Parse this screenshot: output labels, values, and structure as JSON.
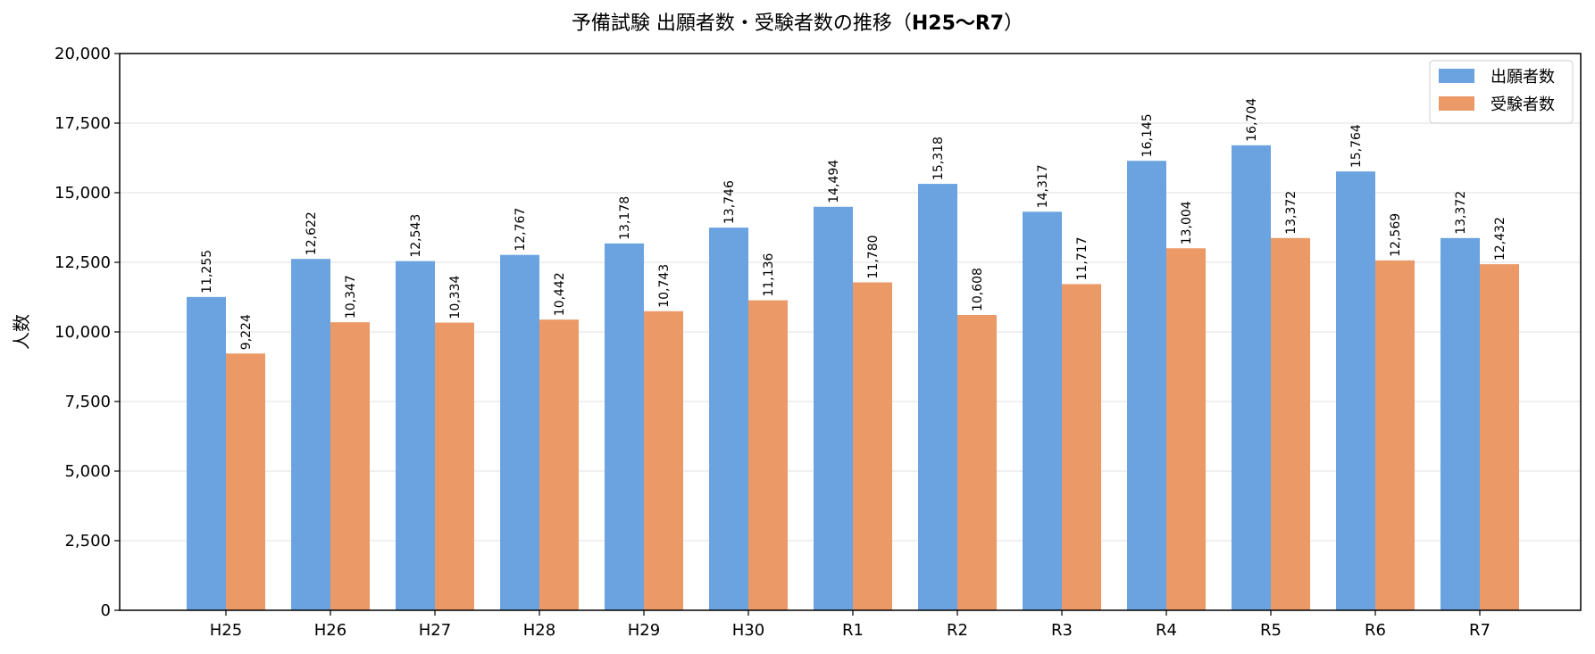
{
  "chart_data": {
    "type": "bar",
    "title_main": "予備試験 出願者数・受験者数の推移（",
    "title_bold": "H25〜R7",
    "title_end": "）",
    "ylabel": "人数",
    "xlabel": "",
    "ylim": [
      0,
      20000
    ],
    "yticks": [
      0,
      2500,
      5000,
      7500,
      10000,
      12500,
      15000,
      17500,
      20000
    ],
    "ytick_labels": [
      "0",
      "2,500",
      "5,000",
      "7,500",
      "10,000",
      "12,500",
      "15,000",
      "17,500",
      "20,000"
    ],
    "categories": [
      "H25",
      "H26",
      "H27",
      "H28",
      "H29",
      "H30",
      "R1",
      "R2",
      "R3",
      "R4",
      "R5",
      "R6",
      "R7"
    ],
    "grid": "horizontal",
    "legend_position": "top-right",
    "series": [
      {
        "name": "出願者数",
        "color": "#6aa3e0",
        "values": [
          11255,
          12622,
          12543,
          12767,
          13178,
          13746,
          14494,
          15318,
          14317,
          16145,
          16704,
          15764,
          13372
        ],
        "labels": [
          "11,255",
          "12,622",
          "12,543",
          "12,767",
          "13,178",
          "13,746",
          "14,494",
          "15,318",
          "14,317",
          "16,145",
          "16,704",
          "15,764",
          "13,372"
        ]
      },
      {
        "name": "受験者数",
        "color": "#ea9967",
        "values": [
          9224,
          10347,
          10334,
          10442,
          10743,
          11136,
          11780,
          10608,
          11717,
          13004,
          13372,
          12569,
          12432
        ],
        "labels": [
          "9,224",
          "10,347",
          "10,334",
          "10,442",
          "10,743",
          "11,136",
          "11,780",
          "10,608",
          "11,717",
          "13,004",
          "13,372",
          "12,569",
          "12,432"
        ]
      }
    ]
  }
}
